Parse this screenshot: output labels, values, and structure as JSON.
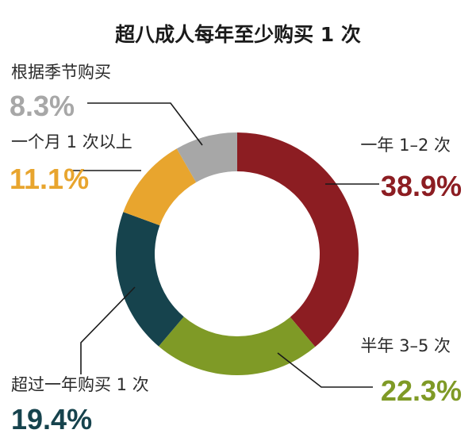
{
  "chart_data": {
    "type": "pie",
    "variant": "donut",
    "title": "超八成人每年至少购买 1 次",
    "categories": [
      "一年 1–2 次",
      "半年 3–5 次",
      "超过一年购买 1 次",
      "一个月 1 次以上",
      "根据季节购买"
    ],
    "values": [
      38.9,
      22.3,
      19.4,
      11.1,
      8.3
    ],
    "value_labels": [
      "38.9%",
      "22.3%",
      "19.4%",
      "11.1%",
      "8.3%"
    ],
    "colors": [
      "#8c1d22",
      "#7f9a26",
      "#16434d",
      "#e8a52e",
      "#a7a7a7"
    ],
    "start_angle": "12 o'clock",
    "direction": "clockwise"
  }
}
